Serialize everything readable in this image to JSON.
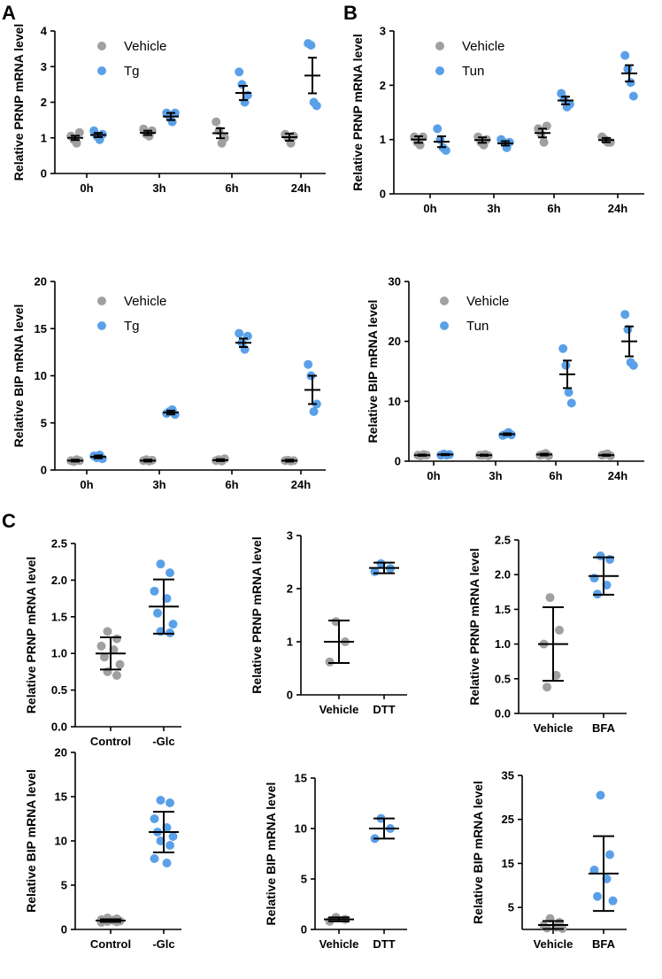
{
  "figure": {
    "panel_letters": [
      "A",
      "B",
      "C"
    ],
    "colors": {
      "vehicle": "#a0a0a0",
      "treated": "#5aa0e8"
    }
  },
  "chart_data": [
    {
      "id": "A_top",
      "type": "scatter",
      "ylabel": "Relative PRNP mRNA level",
      "ylim": [
        0,
        4
      ],
      "yticks": [
        0,
        1,
        2,
        3,
        4
      ],
      "categories": [
        "0h",
        "3h",
        "6h",
        "24h"
      ],
      "legend": [
        "Vehicle",
        "Tg"
      ],
      "series": [
        {
          "name": "Vehicle",
          "color": "#a0a0a0",
          "points": [
            [
              1.05,
              0.95,
              0.85,
              1.15
            ],
            [
              1.25,
              1.1,
              1.05,
              1.2
            ],
            [
              1.45,
              1.2,
              0.85,
              1.0
            ],
            [
              1.1,
              1.0,
              0.85,
              1.05
            ]
          ],
          "mean": [
            1.0,
            1.14,
            1.13,
            1.02
          ],
          "err": [
            0.06,
            0.06,
            0.14,
            0.1
          ]
        },
        {
          "name": "Tg",
          "color": "#5aa0e8",
          "points": [
            [
              1.2,
              1.05,
              0.95,
              1.1
            ],
            [
              1.7,
              1.6,
              1.45,
              1.7
            ],
            [
              2.85,
              2.5,
              2.0,
              2.2
            ],
            [
              3.65,
              3.6,
              2.0,
              1.9
            ]
          ],
          "mean": [
            1.08,
            1.6,
            2.26,
            2.75
          ],
          "err": [
            0.06,
            0.1,
            0.2,
            0.5
          ]
        }
      ]
    },
    {
      "id": "B_top",
      "type": "scatter",
      "ylabel": "Relative PRNP mRNA level",
      "ylim": [
        0,
        3
      ],
      "yticks": [
        0,
        1,
        2,
        3
      ],
      "categories": [
        "0h",
        "3h",
        "6h",
        "24h"
      ],
      "legend": [
        "Vehicle",
        "Tun"
      ],
      "series": [
        {
          "name": "Vehicle",
          "color": "#a0a0a0",
          "points": [
            [
              1.05,
              0.95,
              0.9,
              1.05
            ],
            [
              1.05,
              0.95,
              0.9,
              1.0
            ],
            [
              1.2,
              1.1,
              0.95,
              1.25
            ],
            [
              1.05,
              1.0,
              0.95,
              0.95
            ]
          ],
          "mean": [
            1.0,
            0.99,
            1.12,
            0.99
          ],
          "err": [
            0.06,
            0.05,
            0.08,
            0.04
          ]
        },
        {
          "name": "Tun",
          "color": "#5aa0e8",
          "points": [
            [
              1.2,
              1.0,
              0.85,
              0.8
            ],
            [
              1.0,
              0.95,
              0.85,
              0.95
            ],
            [
              1.85,
              1.75,
              1.6,
              1.65
            ],
            [
              2.55,
              2.3,
              2.05,
              1.8
            ]
          ],
          "mean": [
            0.96,
            0.93,
            1.72,
            2.22
          ],
          "err": [
            0.1,
            0.04,
            0.07,
            0.15
          ]
        }
      ]
    },
    {
      "id": "A_bottom",
      "type": "scatter",
      "ylabel": "Relative BIP mRNA level",
      "ylim": [
        0,
        20
      ],
      "yticks": [
        0,
        5,
        10,
        15,
        20
      ],
      "categories": [
        "0h",
        "3h",
        "6h",
        "24h"
      ],
      "legend": [
        "Vehicle",
        "Tg"
      ],
      "series": [
        {
          "name": "Vehicle",
          "color": "#a0a0a0",
          "points": [
            [
              1.0,
              0.9,
              1.1,
              1.0
            ],
            [
              1.0,
              1.1,
              0.95,
              1.05
            ],
            [
              1.0,
              1.1,
              0.95,
              1.2
            ],
            [
              1.0,
              1.05,
              0.95,
              1.0
            ]
          ],
          "mean": [
            1.0,
            1.0,
            1.05,
            1.0
          ],
          "err": [
            0.1,
            0.1,
            0.1,
            0.1
          ]
        },
        {
          "name": "Tg",
          "color": "#5aa0e8",
          "points": [
            [
              1.5,
              1.3,
              1.6,
              1.2
            ],
            [
              6.0,
              6.2,
              6.4,
              5.9
            ],
            [
              14.5,
              13.5,
              12.8,
              14.2
            ],
            [
              11.2,
              10.0,
              6.2,
              7.0
            ]
          ],
          "mean": [
            1.4,
            6.1,
            13.5,
            8.5
          ],
          "err": [
            0.15,
            0.2,
            0.45,
            1.5
          ]
        }
      ]
    },
    {
      "id": "B_bottom",
      "type": "scatter",
      "ylabel": "Relative BIP mRNA level",
      "ylim": [
        0,
        30
      ],
      "yticks": [
        0,
        10,
        20,
        30
      ],
      "categories": [
        "0h",
        "3h",
        "6h",
        "24h"
      ],
      "legend": [
        "Vehicle",
        "Tun"
      ],
      "series": [
        {
          "name": "Vehicle",
          "color": "#a0a0a0",
          "points": [
            [
              1.0,
              0.9,
              1.1,
              1.0
            ],
            [
              1.0,
              1.0,
              1.1,
              0.9
            ],
            [
              1.0,
              1.1,
              1.3,
              0.9
            ],
            [
              1.0,
              1.1,
              1.2,
              0.9
            ]
          ],
          "mean": [
            1.0,
            1.0,
            1.1,
            1.0
          ],
          "err": [
            0.1,
            0.1,
            0.15,
            0.1
          ]
        },
        {
          "name": "Tun",
          "color": "#5aa0e8",
          "points": [
            [
              1.0,
              1.2,
              1.0,
              1.1
            ],
            [
              4.3,
              4.5,
              4.8,
              4.4
            ],
            [
              18.8,
              16.0,
              11.5,
              9.7
            ],
            [
              24.5,
              22.0,
              16.5,
              16.0
            ]
          ],
          "mean": [
            1.1,
            4.5,
            14.5,
            20.0
          ],
          "err": [
            0.1,
            0.15,
            2.3,
            2.5
          ]
        }
      ]
    },
    {
      "id": "C1_top",
      "type": "scatter",
      "ylabel": "Relative PRNP mRNA level",
      "ylim": [
        0,
        2.5
      ],
      "yticks": [
        0,
        0.5,
        1,
        1.5,
        2,
        2.5
      ],
      "ytick_labels": [
        "0.0",
        "0.5",
        "1.0",
        "1.5",
        "2.0",
        "2.5"
      ],
      "categories": [
        "Control",
        "-Glc"
      ],
      "groups": [
        {
          "color": "#a0a0a0",
          "points": [
            1.3,
            1.2,
            1.1,
            1.05,
            0.95,
            0.85,
            0.75,
            0.7
          ],
          "mean": 1.0,
          "sd": 0.22
        },
        {
          "color": "#5aa0e8",
          "points": [
            2.22,
            2.1,
            1.85,
            1.75,
            1.55,
            1.4,
            1.3,
            1.28
          ],
          "mean": 1.64,
          "sd": 0.37
        }
      ]
    },
    {
      "id": "C2_top",
      "type": "scatter",
      "ylabel": "Relative PRNP mRNA level",
      "ylim": [
        0,
        3
      ],
      "yticks": [
        0,
        1,
        2,
        3
      ],
      "categories": [
        "Vehicle",
        "DTT"
      ],
      "groups": [
        {
          "color": "#a0a0a0",
          "points": [
            1.38,
            1.0,
            0.62
          ],
          "mean": 1.0,
          "sd": 0.4
        },
        {
          "color": "#5aa0e8",
          "points": [
            2.47,
            2.38,
            2.32
          ],
          "mean": 2.39,
          "sd": 0.1
        }
      ]
    },
    {
      "id": "C3_top",
      "type": "scatter",
      "ylabel": "Relative PRNP mRNA level",
      "ylim": [
        0,
        2.5
      ],
      "yticks": [
        0,
        0.5,
        1,
        1.5,
        2,
        2.5
      ],
      "ytick_labels": [
        "0.0",
        "0.5",
        "1.0",
        "1.5",
        "2.0",
        "2.5"
      ],
      "categories": [
        "Vehicle",
        "BFA"
      ],
      "groups": [
        {
          "color": "#a0a0a0",
          "points": [
            1.67,
            1.2,
            1.0,
            0.55,
            0.38
          ],
          "mean": 1.0,
          "sd": 0.53
        },
        {
          "color": "#5aa0e8",
          "points": [
            2.27,
            2.22,
            1.95,
            1.85,
            1.72
          ],
          "mean": 1.98,
          "sd": 0.27
        }
      ]
    },
    {
      "id": "C1_bottom",
      "type": "scatter",
      "ylabel": "Relative BIP mRNA level",
      "ylim": [
        0,
        20
      ],
      "yticks": [
        0,
        5,
        10,
        15,
        20
      ],
      "categories": [
        "Control",
        "-Glc"
      ],
      "groups": [
        {
          "color": "#a0a0a0",
          "points": [
            1.3,
            1.2,
            1.1,
            1.05,
            1.0,
            0.95,
            0.9,
            0.85,
            0.8,
            1.0
          ],
          "mean": 1.0,
          "sd": 0.15
        },
        {
          "color": "#5aa0e8",
          "points": [
            14.6,
            14.3,
            12.5,
            11.5,
            11.0,
            10.5,
            10.0,
            9.5,
            8.0,
            7.5
          ],
          "mean": 11.0,
          "sd": 2.3
        }
      ]
    },
    {
      "id": "C2_bottom",
      "type": "scatter",
      "ylabel": "Relative BIP mRNA level",
      "ylim": [
        0,
        15
      ],
      "yticks": [
        0,
        5,
        10,
        15
      ],
      "categories": [
        "Vehicle",
        "DTT"
      ],
      "groups": [
        {
          "color": "#a0a0a0",
          "points": [
            1.2,
            1.0,
            0.8
          ],
          "mean": 1.0,
          "sd": 0.2
        },
        {
          "color": "#5aa0e8",
          "points": [
            11.0,
            10.0,
            9.0
          ],
          "mean": 10.0,
          "sd": 1.0
        }
      ]
    },
    {
      "id": "C3_bottom",
      "type": "scatter",
      "ylabel": "Relative BIP mRNA level",
      "ylim": [
        0,
        35
      ],
      "ybase": 0,
      "yticks": [
        5,
        15,
        25,
        35
      ],
      "categories": [
        "Vehicle",
        "BFA"
      ],
      "groups": [
        {
          "color": "#a0a0a0",
          "points": [
            2.5,
            1.6,
            0.9,
            0.5,
            0.3,
            0.2
          ],
          "mean": 1.0,
          "sd": 0.9
        },
        {
          "color": "#5aa0e8",
          "points": [
            30.5,
            17.0,
            13.5,
            11.5,
            7.5,
            6.5
          ],
          "mean": 12.7,
          "sd": 8.5
        }
      ]
    }
  ]
}
